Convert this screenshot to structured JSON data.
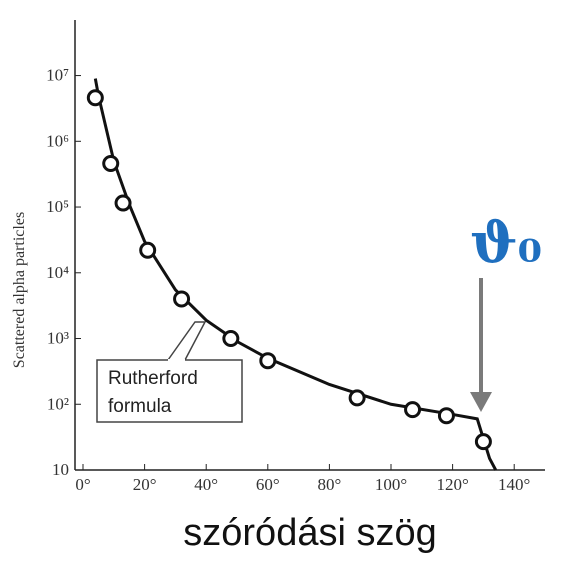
{
  "chart_data": {
    "type": "scatter",
    "xlabel": "szóródási szög",
    "ylabel": "Scattered alpha particles",
    "annotations": [
      {
        "lines": [
          "Rutherford",
          "formula"
        ]
      },
      {
        "text": "ϑ₀"
      }
    ],
    "xlim": [
      -2.6,
      150
    ],
    "ylim": [
      10,
      70000000
    ],
    "log_y": true,
    "xticks": [
      {
        "value": 0,
        "label": "0°"
      },
      {
        "value": 20,
        "label": "20°"
      },
      {
        "value": 40,
        "label": "40°"
      },
      {
        "value": 60,
        "label": "60°"
      },
      {
        "value": 80,
        "label": "80°"
      },
      {
        "value": 100,
        "label": "100°"
      },
      {
        "value": 120,
        "label": "120°"
      },
      {
        "value": 140,
        "label": "140°"
      }
    ],
    "yticks": [
      10,
      {
        "value": 100,
        "label": "10²"
      },
      {
        "value": 1000,
        "label": "10³"
      },
      {
        "value": 10000,
        "label": "10⁴"
      },
      {
        "value": 100000,
        "label": "10⁵"
      },
      {
        "value": 1000000,
        "label": "10⁶"
      },
      {
        "value": 10000000,
        "label": "10⁷"
      }
    ],
    "series": [
      {
        "kind": "line",
        "color": "#111111",
        "x": [
          4,
          5,
          10,
          15,
          20,
          30,
          40,
          50,
          60,
          80,
          100,
          120,
          128,
          130,
          132,
          134
        ],
        "values": [
          9000000,
          5000000,
          500000,
          110000,
          30000,
          5500,
          1900,
          900,
          500,
          200,
          100,
          70,
          60,
          30,
          15,
          10
        ]
      },
      {
        "kind": "markers",
        "color": "#111111",
        "x": [
          4,
          9,
          13,
          21,
          32,
          48,
          60,
          89,
          107,
          118,
          130
        ],
        "values": [
          4600000,
          460000,
          115000,
          22000,
          4000,
          1000,
          460,
          125,
          83,
          67,
          27
        ]
      }
    ]
  }
}
